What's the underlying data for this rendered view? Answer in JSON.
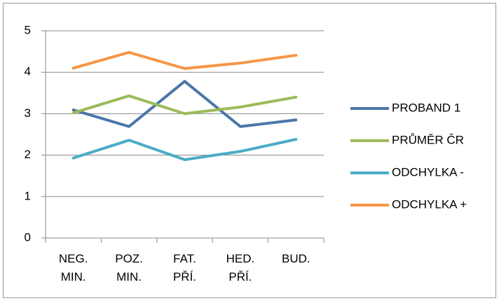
{
  "chart_data": {
    "type": "line",
    "categories": [
      "NEG. MIN.",
      "POZ. MIN.",
      "FAT. PŘÍ.",
      "HED. PŘÍ.",
      "BUD."
    ],
    "series": [
      {
        "name": "PROBAND 1",
        "color": "#4a76a8",
        "values": [
          3.09,
          2.69,
          3.78,
          2.69,
          2.85
        ]
      },
      {
        "name": "PRŮMĚR ČR",
        "color": "#9bbb59",
        "values": [
          3.02,
          3.43,
          3.0,
          3.16,
          3.4
        ]
      },
      {
        "name": "ODCHYLKA -",
        "color": "#4bacc6",
        "values": [
          1.93,
          2.36,
          1.89,
          2.09,
          2.38
        ]
      },
      {
        "name": "ODCHYLKA +",
        "color": "#f79646",
        "values": [
          4.1,
          4.48,
          4.09,
          4.22,
          4.41
        ]
      }
    ],
    "ylim": [
      0,
      5
    ],
    "yticks": [
      0,
      1,
      2,
      3,
      4,
      5
    ],
    "grid": true,
    "legend": "right"
  }
}
